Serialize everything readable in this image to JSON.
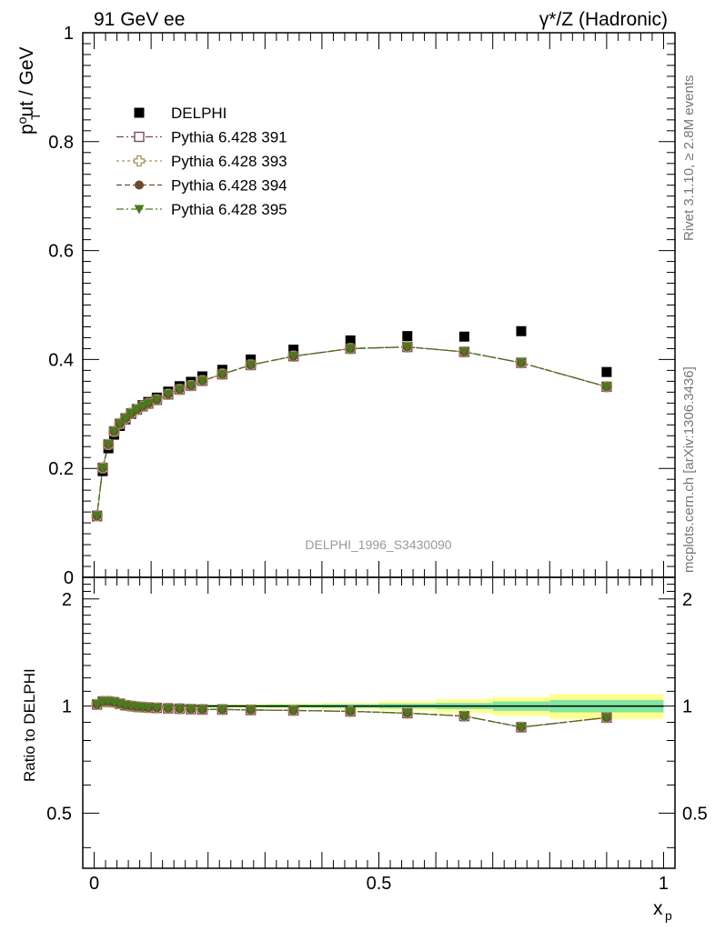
{
  "header": {
    "left": "91 GeV ee",
    "right": "γ*/Z (Hadronic)"
  },
  "side": {
    "rivet": "Rivet 3.1.10, ≥ 2.8M events",
    "source": "mcplots.cern.ch [arXiv:1306.3436]"
  },
  "analysis_label": "DELPHI_1996_S3430090",
  "chart_data": [
    {
      "type": "scatter",
      "panel": "main",
      "title": "",
      "ylabel": "p_T^out / GeV",
      "xlabel": "x_p",
      "xlim": [
        -0.02,
        1.02
      ],
      "ylim": [
        0.0,
        1.0
      ],
      "yticks": [
        {
          "value": 0.0,
          "label": "0"
        },
        {
          "value": 0.2,
          "label": "0.2"
        },
        {
          "value": 0.4,
          "label": "0.4"
        },
        {
          "value": 0.6,
          "label": "0.6"
        },
        {
          "value": 0.8,
          "label": "0.8"
        },
        {
          "value": 1.0,
          "label": "1"
        }
      ],
      "legend_placement": "top-left",
      "x": [
        0.005,
        0.015,
        0.025,
        0.035,
        0.045,
        0.055,
        0.065,
        0.075,
        0.085,
        0.095,
        0.11,
        0.13,
        0.15,
        0.17,
        0.19,
        0.225,
        0.275,
        0.35,
        0.45,
        0.55,
        0.65,
        0.75,
        0.9
      ],
      "series": [
        {
          "name": "DELPHI",
          "color": "#000000",
          "marker": "square-filled",
          "values": [
            0.112,
            0.195,
            0.237,
            0.262,
            0.278,
            0.29,
            0.3,
            0.309,
            0.316,
            0.322,
            0.33,
            0.341,
            0.351,
            0.359,
            0.369,
            0.381,
            0.4,
            0.418,
            0.435,
            0.443,
            0.442,
            0.452,
            0.377
          ]
        },
        {
          "name": "Pythia 6.428 391",
          "color": "#7a4a5a",
          "marker": "square-open",
          "values": [
            0.113,
            0.201,
            0.244,
            0.268,
            0.282,
            0.292,
            0.301,
            0.308,
            0.314,
            0.319,
            0.326,
            0.336,
            0.345,
            0.352,
            0.361,
            0.373,
            0.39,
            0.406,
            0.42,
            0.423,
            0.414,
            0.394,
            0.35
          ]
        },
        {
          "name": "Pythia 6.428 393",
          "color": "#a89060",
          "marker": "cross-open",
          "values": [
            0.113,
            0.201,
            0.244,
            0.268,
            0.282,
            0.292,
            0.301,
            0.308,
            0.314,
            0.319,
            0.326,
            0.336,
            0.345,
            0.352,
            0.361,
            0.373,
            0.39,
            0.406,
            0.42,
            0.423,
            0.414,
            0.394,
            0.35
          ]
        },
        {
          "name": "Pythia 6.428 394",
          "color": "#6b4a30",
          "marker": "circle-filled",
          "values": [
            0.113,
            0.201,
            0.244,
            0.268,
            0.282,
            0.292,
            0.301,
            0.308,
            0.314,
            0.319,
            0.326,
            0.336,
            0.345,
            0.352,
            0.361,
            0.373,
            0.39,
            0.406,
            0.42,
            0.423,
            0.414,
            0.394,
            0.35
          ]
        },
        {
          "name": "Pythia 6.428 395",
          "color": "#4a7a1e",
          "marker": "triangle-down-filled",
          "values": [
            0.113,
            0.201,
            0.244,
            0.268,
            0.282,
            0.292,
            0.301,
            0.308,
            0.314,
            0.319,
            0.326,
            0.336,
            0.345,
            0.352,
            0.361,
            0.373,
            0.39,
            0.406,
            0.42,
            0.423,
            0.414,
            0.394,
            0.35
          ]
        }
      ]
    },
    {
      "type": "line",
      "panel": "ratio",
      "ylabel": "Ratio to DELPHI",
      "xlabel": "x_p",
      "xlim": [
        -0.02,
        1.02
      ],
      "ylim": [
        0.35,
        2.3
      ],
      "log_y": true,
      "xticks": [
        {
          "value": 0.0,
          "label": "0"
        },
        {
          "value": 0.5,
          "label": "0.5"
        },
        {
          "value": 1.0,
          "label": "1"
        }
      ],
      "yticks": [
        {
          "value": 0.5,
          "label": "0.5"
        },
        {
          "value": 1.0,
          "label": "1"
        },
        {
          "value": 2.0,
          "label": "2"
        }
      ],
      "band_edges": [
        0.0,
        0.01,
        0.02,
        0.03,
        0.04,
        0.05,
        0.06,
        0.07,
        0.08,
        0.09,
        0.1,
        0.12,
        0.14,
        0.16,
        0.18,
        0.2,
        0.25,
        0.3,
        0.4,
        0.5,
        0.6,
        0.7,
        0.8,
        1.0
      ],
      "band_inner": [
        0.008,
        0.008,
        0.008,
        0.008,
        0.008,
        0.008,
        0.008,
        0.008,
        0.008,
        0.008,
        0.008,
        0.008,
        0.008,
        0.008,
        0.008,
        0.008,
        0.008,
        0.01,
        0.012,
        0.016,
        0.02,
        0.03,
        0.04
      ],
      "band_outer": [
        0.012,
        0.012,
        0.012,
        0.012,
        0.012,
        0.012,
        0.012,
        0.012,
        0.012,
        0.012,
        0.012,
        0.012,
        0.012,
        0.012,
        0.012,
        0.012,
        0.013,
        0.016,
        0.02,
        0.03,
        0.045,
        0.06,
        0.08
      ],
      "band_colors": {
        "inner": "#80e6a0",
        "outer": "#ffff90"
      },
      "x": [
        0.005,
        0.015,
        0.025,
        0.035,
        0.045,
        0.055,
        0.065,
        0.075,
        0.085,
        0.095,
        0.11,
        0.13,
        0.15,
        0.17,
        0.19,
        0.225,
        0.275,
        0.35,
        0.45,
        0.55,
        0.65,
        0.75,
        0.9
      ],
      "series": [
        {
          "name": "Pythia 6.428 391",
          "color": "#7a4a5a",
          "marker": "square-open",
          "values": [
            1.01,
            1.03,
            1.03,
            1.025,
            1.015,
            1.005,
            1.0,
            0.995,
            0.993,
            0.99,
            0.988,
            0.985,
            0.983,
            0.98,
            0.978,
            0.978,
            0.975,
            0.972,
            0.966,
            0.955,
            0.937,
            0.872,
            0.928
          ]
        },
        {
          "name": "Pythia 6.428 393",
          "color": "#a89060",
          "marker": "cross-open",
          "values": [
            1.01,
            1.03,
            1.03,
            1.025,
            1.015,
            1.005,
            1.0,
            0.995,
            0.993,
            0.99,
            0.988,
            0.985,
            0.983,
            0.98,
            0.978,
            0.978,
            0.975,
            0.972,
            0.966,
            0.955,
            0.937,
            0.872,
            0.928
          ]
        },
        {
          "name": "Pythia 6.428 394",
          "color": "#6b4a30",
          "marker": "circle-filled",
          "values": [
            1.01,
            1.03,
            1.03,
            1.025,
            1.015,
            1.005,
            1.0,
            0.995,
            0.993,
            0.99,
            0.988,
            0.985,
            0.983,
            0.98,
            0.978,
            0.978,
            0.975,
            0.972,
            0.966,
            0.955,
            0.937,
            0.872,
            0.928
          ]
        },
        {
          "name": "Pythia 6.428 395",
          "color": "#4a7a1e",
          "marker": "triangle-down-filled",
          "values": [
            1.01,
            1.03,
            1.03,
            1.025,
            1.015,
            1.005,
            1.0,
            0.995,
            0.993,
            0.99,
            0.988,
            0.985,
            0.983,
            0.98,
            0.978,
            0.978,
            0.975,
            0.972,
            0.966,
            0.955,
            0.937,
            0.872,
            0.928
          ]
        }
      ]
    }
  ]
}
